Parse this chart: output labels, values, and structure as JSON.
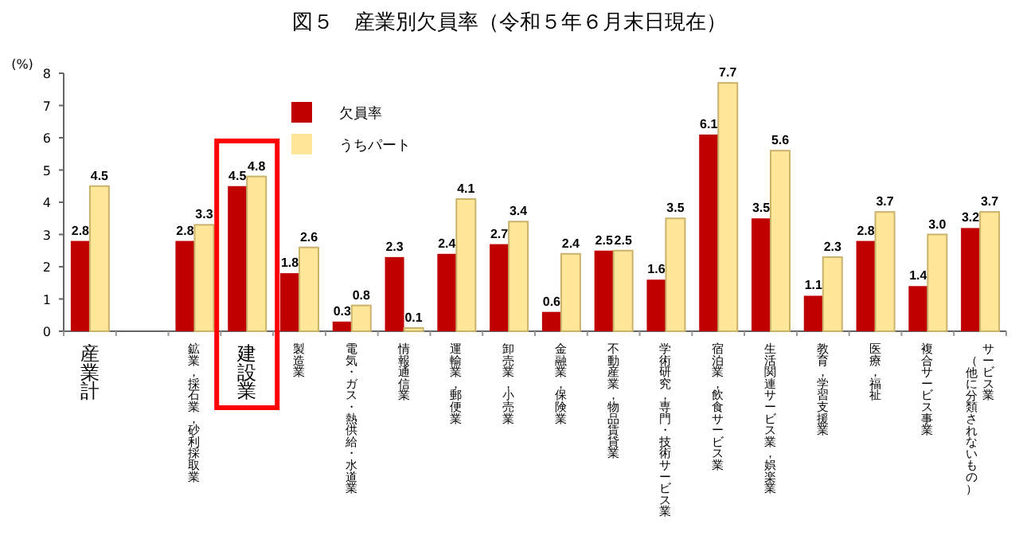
{
  "chart_data": {
    "type": "bar",
    "title": "図５　産業別欠員率（令和５年６月末日現在）",
    "ylabel": "(%)",
    "categories": [
      "産業計",
      null,
      "鉱業，採石業，砂利採取業",
      "建設業",
      "製造業",
      "電気・ガス・熱供給・水道業",
      "情報通信業",
      "運輸業，郵便業",
      "卸売業，小売業",
      "金融業，保険業",
      "不動産業，物品賃貸業",
      "学術研究，専門・技術サービス業",
      "宿泊業，飲食サービス業",
      "生活関連サービス業，娯楽業",
      "教育，学習支援業",
      "医療，福祉",
      "複合サービス事業",
      "サービス業（他に分類されないもの）"
    ],
    "series": [
      {
        "name": "欠員率",
        "color": "#c00000",
        "values": [
          2.8,
          null,
          2.8,
          4.5,
          1.8,
          0.3,
          2.3,
          2.4,
          2.7,
          0.6,
          2.5,
          1.6,
          6.1,
          3.5,
          1.1,
          2.8,
          1.4,
          3.2
        ],
        "value_labels": [
          "2.8",
          null,
          "2.8",
          "4.5",
          "1.8",
          "0.3",
          "2.3",
          "2.4",
          "2.7",
          "0.6",
          "2.5",
          "1.6",
          "6.1",
          "3.5",
          "1.1",
          "2.8",
          "1.4",
          "3.2"
        ]
      },
      {
        "name": "うちパート",
        "color": "#ffe699",
        "values": [
          4.5,
          null,
          3.3,
          4.8,
          2.6,
          0.8,
          0.1,
          4.1,
          3.4,
          2.4,
          2.5,
          3.5,
          7.7,
          5.6,
          2.3,
          3.7,
          3.0,
          3.7
        ],
        "value_labels": [
          "4.5",
          null,
          "3.3",
          "4.8",
          "2.6",
          "0.8",
          "0.1",
          "4.1",
          "3.4",
          "2.4",
          "2.5",
          "3.5",
          "7.7",
          "5.6",
          "2.3",
          "3.7",
          "3.0",
          "3.7"
        ]
      }
    ],
    "ylim": [
      0,
      8
    ],
    "yticks": [
      0,
      1,
      2,
      3,
      4,
      5,
      6,
      7,
      8
    ],
    "legend": "top",
    "grid": false
  }
}
